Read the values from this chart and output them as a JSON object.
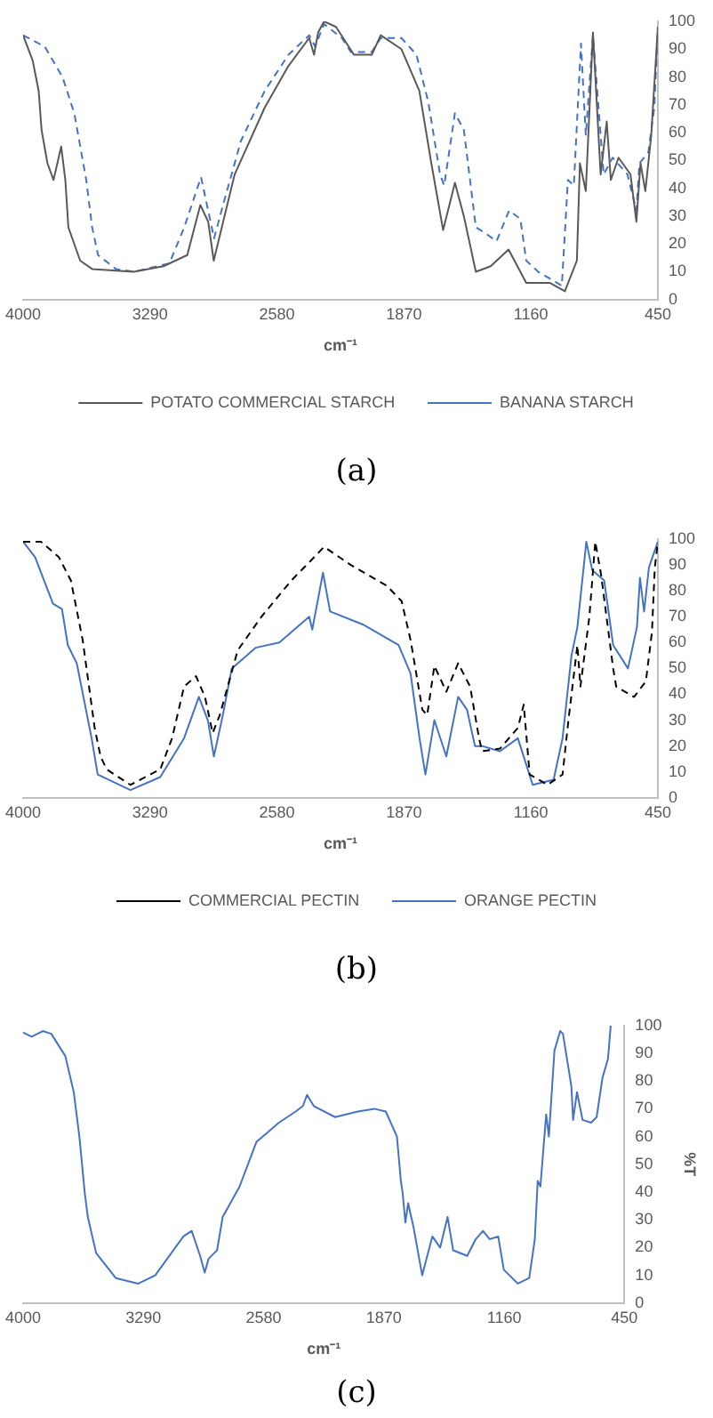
{
  "chart_data": [
    {
      "type": "line",
      "title": "(a)",
      "xlabel": "cm⁻¹",
      "legend": "bottom",
      "xlim": [
        4000,
        450
      ],
      "xticks": [
        4000,
        3290,
        2580,
        1870,
        1160,
        450
      ],
      "ylim": [
        0,
        100
      ],
      "yticks": [
        0,
        10,
        20,
        30,
        40,
        50,
        60,
        70,
        80,
        90,
        100
      ],
      "series": [
        {
          "name": "POTATO COMMERCIAL STARCH",
          "color": "#595959",
          "line_style": "solid",
          "x": [
            4000,
            3947,
            3913,
            3897,
            3864,
            3830,
            3787,
            3764,
            3747,
            3681,
            3614,
            3381,
            3215,
            3082,
            3009,
            2965,
            2934,
            2817,
            2649,
            2516,
            2400,
            2373,
            2350,
            2317,
            2250,
            2150,
            2050,
            2000,
            1884,
            1784,
            1717,
            1651,
            1585,
            1535,
            1468,
            1385,
            1285,
            1186,
            1053,
            970,
            903,
            886,
            853,
            813,
            770,
            736,
            713,
            670,
            603,
            570,
            547,
            520,
            487,
            450
          ],
          "values": [
            95,
            86,
            75,
            61,
            49,
            43,
            55,
            43,
            26,
            14,
            11,
            10,
            12,
            16,
            34,
            28,
            14,
            45,
            69,
            84,
            94,
            88,
            96,
            100,
            98,
            88,
            88,
            95,
            90,
            75,
            49,
            25,
            42,
            30,
            10,
            12,
            18,
            6,
            6,
            3,
            14,
            49,
            39,
            96,
            45,
            64,
            43,
            51,
            45,
            28,
            49,
            39,
            59,
            98
          ]
        },
        {
          "name": "BANANA STARCH",
          "color": "#4472c4",
          "line_style": "dashed",
          "x": [
            4000,
            3880,
            3780,
            3714,
            3647,
            3614,
            3581,
            3481,
            3381,
            3182,
            3099,
            3005,
            2932,
            2882,
            2782,
            2649,
            2516,
            2400,
            2367,
            2317,
            2217,
            2167,
            2050,
            2000,
            1884,
            1800,
            1734,
            1668,
            1645,
            1585,
            1535,
            1468,
            1418,
            1352,
            1282,
            1219,
            1186,
            1119,
            987,
            953,
            920,
            880,
            853,
            813,
            753,
            703,
            620,
            570,
            553,
            503,
            470,
            450
          ],
          "values": [
            95,
            91,
            80,
            67,
            43,
            26,
            16,
            11,
            10,
            13,
            26,
            44,
            22,
            34,
            57,
            75,
            88,
            95,
            91,
            99,
            94,
            89,
            89,
            94,
            94,
            88,
            71,
            45,
            41,
            67,
            61,
            26,
            24,
            21,
            32,
            29,
            14,
            10,
            5,
            43,
            41,
            92,
            59,
            95,
            45,
            51,
            45,
            32,
            49,
            53,
            69,
            98
          ]
        }
      ]
    },
    {
      "type": "line",
      "title": "(b)",
      "xlabel": "cm⁻¹",
      "legend": "bottom",
      "xlim": [
        4000,
        450
      ],
      "xticks": [
        4000,
        3290,
        2580,
        1870,
        1160,
        450
      ],
      "ylim": [
        0,
        100
      ],
      "yticks": [
        0,
        10,
        20,
        30,
        40,
        50,
        60,
        70,
        80,
        90,
        100
      ],
      "series": [
        {
          "name": "COMMERCIAL PECTIN",
          "color": "#000000",
          "line_style": "dashed",
          "x": [
            4000,
            3900,
            3800,
            3733,
            3667,
            3600,
            3567,
            3533,
            3400,
            3233,
            3167,
            3100,
            3033,
            2983,
            2940,
            2900,
            2800,
            2667,
            2500,
            2400,
            2317,
            2167,
            1967,
            1883,
            1833,
            1767,
            1740,
            1700,
            1633,
            1567,
            1500,
            1450,
            1433,
            1333,
            1233,
            1200,
            1167,
            1067,
            983,
            950,
            900,
            883,
            833,
            800,
            767,
            700,
            683,
            583,
            517,
            483,
            467,
            450
          ],
          "values": [
            99,
            99,
            93,
            84,
            61,
            27,
            16,
            11,
            5,
            11,
            23,
            43,
            47,
            39,
            25,
            32,
            57,
            70,
            84,
            91,
            97,
            90,
            82,
            76,
            61,
            34,
            32,
            51,
            41,
            52,
            43,
            23,
            18,
            19,
            27,
            36,
            9,
            5,
            9,
            30,
            59,
            43,
            70,
            99,
            86,
            50,
            43,
            39,
            45,
            64,
            89,
            99
          ]
        },
        {
          "name": "ORANGE PECTIN",
          "color": "#4472c4",
          "line_style": "solid",
          "x": [
            4000,
            3933,
            3833,
            3783,
            3750,
            3700,
            3617,
            3583,
            3400,
            3233,
            3100,
            3017,
            2967,
            2933,
            2883,
            2833,
            2700,
            2567,
            2400,
            2383,
            2350,
            2323,
            2283,
            2100,
            1900,
            1833,
            1783,
            1750,
            1700,
            1633,
            1567,
            1517,
            1473,
            1433,
            1333,
            1233,
            1150,
            1033,
            983,
            933,
            900,
            850,
            817,
            750,
            700,
            617,
            567,
            550,
            527,
            500,
            450
          ],
          "values": [
            99,
            93,
            75,
            73,
            59,
            52,
            23,
            9,
            3,
            8,
            23,
            39,
            30,
            16,
            32,
            50,
            58,
            60,
            70,
            65,
            77,
            87,
            72,
            67,
            59,
            48,
            23,
            9,
            30,
            16,
            39,
            34,
            20,
            20,
            18,
            23,
            5,
            7,
            23,
            55,
            66,
            99,
            88,
            84,
            59,
            50,
            66,
            85,
            72,
            89,
            99
          ]
        }
      ]
    },
    {
      "type": "line",
      "title": "(c)",
      "xlabel": "cm⁻¹",
      "ylabel": "%T",
      "xlim": [
        4000,
        450
      ],
      "xticks": [
        4000,
        3290,
        2580,
        1870,
        1160,
        450
      ],
      "ylim": [
        0,
        100
      ],
      "yticks": [
        0,
        10,
        20,
        30,
        40,
        50,
        60,
        70,
        80,
        90,
        100
      ],
      "series": [
        {
          "color": "#4472c4",
          "line_style": "solid",
          "x": [
            4000,
            3950,
            3884,
            3834,
            3751,
            3701,
            3668,
            3635,
            3618,
            3569,
            3453,
            3320,
            3220,
            3054,
            3005,
            2955,
            2928,
            2905,
            2872,
            2855,
            2822,
            2722,
            2623,
            2490,
            2391,
            2348,
            2324,
            2284,
            2158,
            2025,
            1926,
            1859,
            1793,
            1770,
            1760,
            1743,
            1727,
            1694,
            1644,
            1584,
            1538,
            1494,
            1461,
            1378,
            1328,
            1285,
            1245,
            1195,
            1162,
            1079,
            1012,
            979,
            962,
            946,
            912,
            896,
            863,
            829,
            813,
            763,
            753,
            730,
            697,
            647,
            614,
            580,
            547,
            531
          ],
          "values": [
            97.5,
            96,
            98,
            97,
            89,
            76,
            60,
            39,
            31,
            18,
            9,
            7,
            10,
            24,
            26,
            17,
            11,
            16,
            18,
            19,
            31,
            42,
            58,
            65,
            69,
            71,
            75,
            71,
            67,
            69,
            70,
            69,
            60,
            44,
            40,
            29,
            36,
            27,
            10,
            24,
            20,
            31,
            19,
            17,
            23,
            26,
            23,
            24,
            12,
            7,
            9,
            23,
            44,
            42,
            68,
            60,
            91,
            98,
            97,
            78,
            66,
            76,
            66,
            65,
            67,
            81,
            88,
            100
          ]
        }
      ]
    }
  ]
}
